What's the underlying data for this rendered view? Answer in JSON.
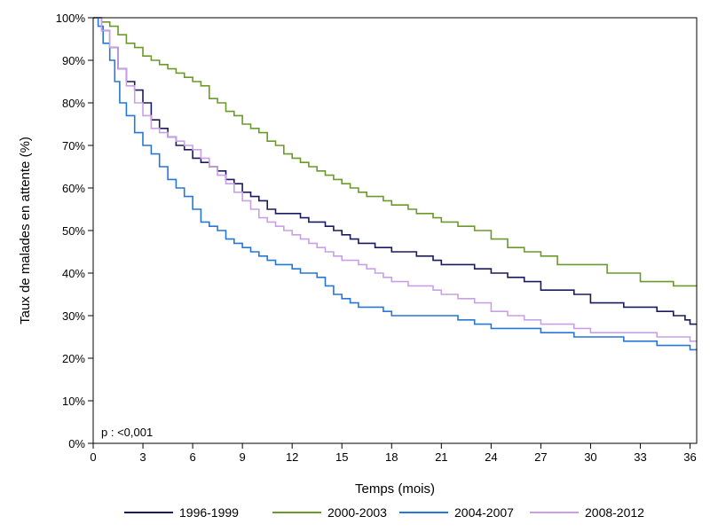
{
  "chart_data": {
    "type": "line",
    "step": true,
    "xlabel": "Temps (mois)",
    "ylabel": "Taux de malades en attente (%)",
    "xlim": [
      0,
      36.4
    ],
    "ylim": [
      0,
      100
    ],
    "xticks": [
      "0",
      "3",
      "6",
      "9",
      "12",
      "15",
      "18",
      "21",
      "24",
      "27",
      "30",
      "33",
      "36"
    ],
    "yticks": [
      "0%",
      "10%",
      "20%",
      "30%",
      "40%",
      "50%",
      "60%",
      "70%",
      "80%",
      "90%",
      "100%"
    ],
    "grid": false,
    "legend_position": "bottom",
    "annotation": "p : <0,001",
    "series": [
      {
        "name": "1996-1999",
        "color": "#1a1a5e",
        "x": [
          0,
          0.5,
          1,
          1.5,
          2,
          2.5,
          3,
          3.5,
          4,
          4.5,
          5,
          5.5,
          6,
          6.5,
          7,
          7.5,
          8,
          8.5,
          9,
          9.5,
          10,
          10.5,
          11,
          11.5,
          12,
          12.5,
          13,
          13.5,
          14,
          14.5,
          15,
          15.5,
          16,
          16.5,
          17,
          17.5,
          18,
          18.5,
          19,
          19.5,
          20,
          20.5,
          21,
          22,
          23,
          24,
          25,
          26,
          27,
          28,
          29,
          30,
          31,
          32,
          33,
          34,
          35,
          35.7,
          36,
          36.4
        ],
        "y": [
          100,
          97,
          93,
          88,
          85,
          83,
          80,
          76,
          74,
          72,
          70,
          69,
          67,
          66,
          65,
          64,
          62,
          61,
          59,
          58,
          57,
          55,
          54,
          54,
          54,
          53,
          52,
          52,
          51,
          50,
          49,
          48,
          47,
          47,
          46,
          46,
          45,
          45,
          45,
          44,
          44,
          43,
          42,
          42,
          41,
          40,
          39,
          38,
          36,
          36,
          35,
          33,
          33,
          32,
          32,
          31,
          30,
          29,
          28,
          28
        ]
      },
      {
        "name": "2000-2003",
        "color": "#6b9a2a",
        "x": [
          0,
          0.5,
          1,
          1.5,
          2,
          2.5,
          3,
          3.5,
          4,
          4.5,
          5,
          5.5,
          6,
          6.5,
          7,
          7.5,
          8,
          8.5,
          9,
          9.5,
          10,
          10.5,
          11,
          11.5,
          12,
          12.5,
          13,
          13.5,
          14,
          14.5,
          15,
          15.5,
          16,
          16.5,
          17,
          17.5,
          18,
          18.5,
          19,
          19.5,
          20,
          20.5,
          21,
          22,
          23,
          24,
          25,
          26,
          27,
          28,
          29,
          30,
          31,
          32,
          33,
          34,
          35,
          36,
          36.4
        ],
        "y": [
          100,
          99,
          98,
          96,
          94,
          93,
          91,
          90,
          89,
          88,
          87,
          86,
          85,
          84,
          81,
          80,
          78,
          77,
          75,
          74,
          73,
          71,
          70,
          68,
          67,
          66,
          65,
          64,
          63,
          62,
          61,
          60,
          59,
          58,
          58,
          57,
          56,
          56,
          55,
          54,
          54,
          53,
          52,
          51,
          50,
          48,
          46,
          45,
          44,
          42,
          42,
          42,
          40,
          40,
          38,
          38,
          37,
          37,
          37
        ]
      },
      {
        "name": "2004-2007",
        "color": "#2677d8",
        "x": [
          0,
          0.3,
          0.6,
          1,
          1.3,
          1.6,
          2,
          2.5,
          3,
          3.5,
          4,
          4.5,
          5,
          5.5,
          6,
          6.5,
          7,
          7.5,
          8,
          8.5,
          9,
          9.5,
          10,
          10.5,
          11,
          11.5,
          12,
          12.5,
          13,
          13.5,
          14,
          14.5,
          15,
          15.5,
          16,
          16.5,
          17,
          17.5,
          18,
          19,
          20,
          21,
          22,
          23,
          24,
          25,
          26,
          27,
          28,
          29,
          30,
          31,
          32,
          33,
          34,
          35,
          36,
          36.4
        ],
        "y": [
          100,
          98,
          94,
          90,
          85,
          80,
          77,
          73,
          70,
          68,
          65,
          62,
          60,
          58,
          55,
          52,
          51,
          50,
          48,
          47,
          46,
          45,
          44,
          43,
          42,
          42,
          41,
          40,
          40,
          39,
          37,
          35,
          34,
          33,
          32,
          32,
          32,
          31,
          30,
          30,
          30,
          30,
          29,
          28,
          27,
          27,
          27,
          26,
          26,
          25,
          25,
          25,
          24,
          24,
          23,
          23,
          22,
          22
        ]
      },
      {
        "name": "2008-2012",
        "color": "#c9a0e8",
        "x": [
          0,
          0.5,
          1,
          1.5,
          2,
          2.5,
          3,
          3.5,
          4,
          4.5,
          5,
          5.5,
          6,
          6.5,
          7,
          7.5,
          8,
          8.5,
          9,
          9.5,
          10,
          10.5,
          11,
          11.5,
          12,
          12.5,
          13,
          13.5,
          14,
          14.5,
          15,
          15.5,
          16,
          16.5,
          17,
          17.5,
          18,
          18.5,
          19,
          19.5,
          20,
          20.5,
          21,
          22,
          23,
          24,
          25,
          26,
          27,
          28,
          29,
          30,
          31,
          32,
          33,
          34,
          35,
          36,
          36.4
        ],
        "y": [
          100,
          97,
          93,
          88,
          84,
          80,
          77,
          74,
          73,
          72,
          71,
          70,
          69,
          67,
          65,
          63,
          61,
          59,
          57,
          55,
          53,
          52,
          51,
          50,
          49,
          48,
          47,
          46,
          45,
          44,
          43,
          43,
          42,
          41,
          40,
          39,
          38,
          38,
          37,
          37,
          37,
          36,
          35,
          34,
          33,
          31,
          30,
          29,
          28,
          28,
          27,
          26,
          26,
          26,
          26,
          25,
          25,
          24,
          24
        ]
      }
    ]
  }
}
